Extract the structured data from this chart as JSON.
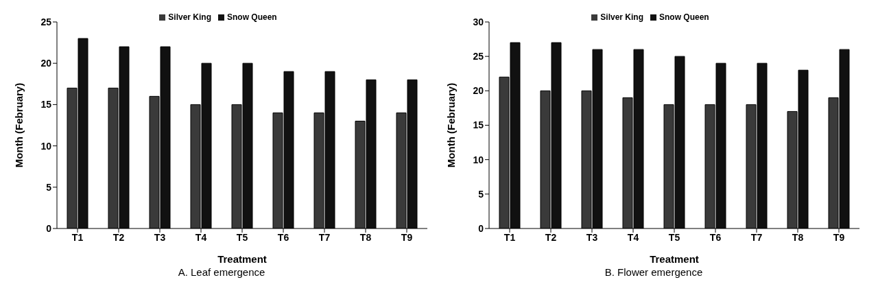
{
  "chart_data": [
    {
      "type": "bar",
      "title": "A. Leaf emergence",
      "xlabel": "Treatment",
      "ylabel": "Month (February)",
      "categories": [
        "T1",
        "T2",
        "T3",
        "T4",
        "T5",
        "T6",
        "T7",
        "T8",
        "T9"
      ],
      "series": [
        {
          "name": "Silver King",
          "color": "#3a3a3a",
          "values": [
            17,
            17,
            16,
            15,
            15,
            14,
            14,
            13,
            14
          ]
        },
        {
          "name": "Snow Queen",
          "color": "#111111",
          "values": [
            23,
            22,
            22,
            20,
            20,
            19,
            19,
            18,
            18
          ]
        }
      ],
      "ylim": [
        0,
        25
      ],
      "yticks": [
        0,
        5,
        10,
        15,
        20,
        25
      ],
      "grid": false,
      "legend": "top"
    },
    {
      "type": "bar",
      "title": "B. Flower emergence",
      "xlabel": "Treatment",
      "ylabel": "Month (February)",
      "categories": [
        "T1",
        "T2",
        "T3",
        "T4",
        "T5",
        "T6",
        "T7",
        "T8",
        "T9"
      ],
      "series": [
        {
          "name": "Silver King",
          "color": "#3a3a3a",
          "values": [
            22,
            20,
            20,
            19,
            18,
            18,
            18,
            17,
            19
          ]
        },
        {
          "name": "Snow Queen",
          "color": "#111111",
          "values": [
            27,
            27,
            26,
            26,
            25,
            24,
            24,
            23,
            26
          ]
        }
      ],
      "ylim": [
        0,
        30
      ],
      "yticks": [
        0,
        5,
        10,
        15,
        20,
        25,
        30
      ],
      "grid": false,
      "legend": "top"
    }
  ]
}
